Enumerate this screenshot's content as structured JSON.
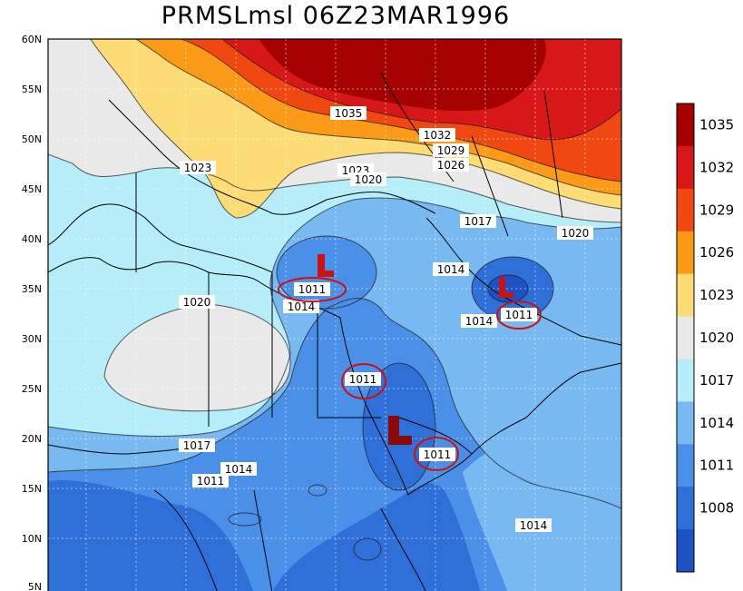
{
  "title": "PRMSLmsl 06Z23MAR1996",
  "lat_labels": [
    "60N",
    "55N",
    "50N",
    "45N",
    "40N",
    "35N",
    "30N",
    "25N",
    "20N",
    "15N",
    "10N",
    "5N"
  ],
  "contour_labels": [
    "1035",
    "1032",
    "1029",
    "1026",
    "1023",
    "1023",
    "1020",
    "1017",
    "1020",
    "1014",
    "1014",
    "1014",
    "1020",
    "1017",
    "1014",
    "1011",
    "1014"
  ],
  "lows": [
    {
      "letter": "L",
      "value": "1011"
    },
    {
      "letter": "L",
      "value": "1011"
    },
    {
      "letter": "L",
      "value": "1011"
    }
  ],
  "extra_circled": "1011",
  "legend": {
    "labels": [
      "1035",
      "1032",
      "1029",
      "1026",
      "1023",
      "1020",
      "1017",
      "1014",
      "1011",
      "1008"
    ],
    "colors": [
      "#a50000",
      "#d81818",
      "#f04810",
      "#fb9a16",
      "#fddc75",
      "#e9e9e9",
      "#b5eef8",
      "#78b9f2",
      "#4a8fe8",
      "#2f6fd8",
      "#1c52c4"
    ]
  },
  "colors": {
    "low_marker": "#cc1111",
    "circle": "#cc1111"
  }
}
